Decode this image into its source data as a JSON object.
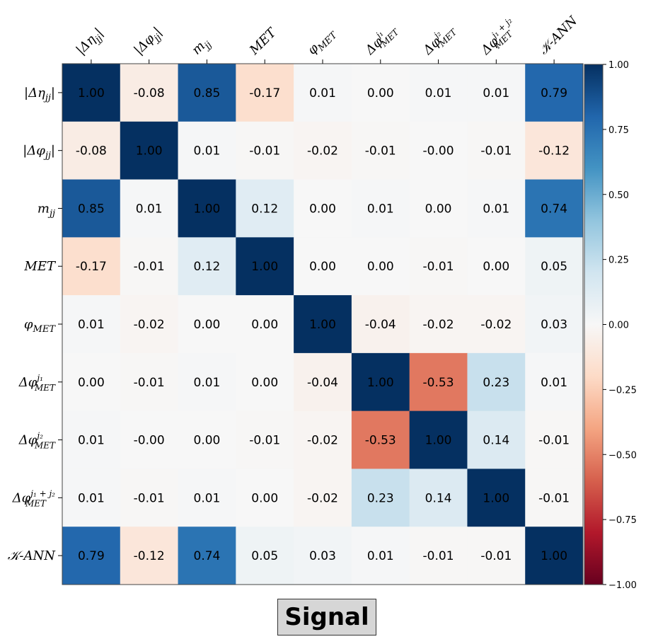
{
  "chart_data": {
    "type": "heatmap",
    "title": "Signal",
    "variables": [
      "|Δη_jj|",
      "|Δφ_jj|",
      "m_jj",
      "MET",
      "φ_MET",
      "Δφ_MET^j1",
      "Δφ_MET^j2",
      "Δφ_MET^(j1+j2)",
      "𝒦-ANN"
    ],
    "labels": [
      {
        "base": "|Δη",
        "sub": "jj",
        "sup": "",
        "tail": "|"
      },
      {
        "base": "|Δφ",
        "sub": "jj",
        "sup": "",
        "tail": "|"
      },
      {
        "base": "m",
        "sub": "jj",
        "sup": "",
        "tail": ""
      },
      {
        "base": "MET",
        "sub": "",
        "sup": "",
        "tail": ""
      },
      {
        "base": "φ",
        "sub": "MET",
        "sup": "",
        "tail": ""
      },
      {
        "base": "Δφ",
        "sub": "MET",
        "sup": "j₁",
        "tail": ""
      },
      {
        "base": "Δφ",
        "sub": "MET",
        "sup": "j₂",
        "tail": ""
      },
      {
        "base": "Δφ",
        "sub": "MET",
        "sup": "j₁ + j₂",
        "tail": ""
      },
      {
        "base": "𝒦-ANN",
        "sub": "",
        "sup": "",
        "tail": ""
      }
    ],
    "matrix": [
      [
        1.0,
        -0.08,
        0.85,
        -0.17,
        0.01,
        0.0,
        0.01,
        0.01,
        0.79
      ],
      [
        -0.08,
        1.0,
        0.01,
        -0.01,
        -0.02,
        -0.01,
        -0.0,
        -0.01,
        -0.12
      ],
      [
        0.85,
        0.01,
        1.0,
        0.12,
        0.0,
        0.01,
        0.0,
        0.01,
        0.74
      ],
      [
        -0.17,
        -0.01,
        0.12,
        1.0,
        0.0,
        0.0,
        -0.01,
        0.0,
        0.05
      ],
      [
        0.01,
        -0.02,
        0.0,
        0.0,
        1.0,
        -0.04,
        -0.02,
        -0.02,
        0.03
      ],
      [
        0.0,
        -0.01,
        0.01,
        0.0,
        -0.04,
        1.0,
        -0.53,
        0.23,
        0.01
      ],
      [
        0.01,
        -0.0,
        0.0,
        -0.01,
        -0.02,
        -0.53,
        1.0,
        0.14,
        -0.01
      ],
      [
        0.01,
        -0.01,
        0.01,
        0.0,
        -0.02,
        0.23,
        0.14,
        1.0,
        -0.01
      ],
      [
        0.79,
        -0.12,
        0.74,
        0.05,
        0.03,
        0.01,
        -0.01,
        -0.01,
        1.0
      ]
    ],
    "cell_labels": [
      [
        "1.00",
        "-0.08",
        "0.85",
        "-0.17",
        "0.01",
        "0.00",
        "0.01",
        "0.01",
        "0.79"
      ],
      [
        "-0.08",
        "1.00",
        "0.01",
        "-0.01",
        "-0.02",
        "-0.01",
        "-0.00",
        "-0.01",
        "-0.12"
      ],
      [
        "0.85",
        "0.01",
        "1.00",
        "0.12",
        "0.00",
        "0.01",
        "0.00",
        "0.01",
        "0.74"
      ],
      [
        "-0.17",
        "-0.01",
        "0.12",
        "1.00",
        "0.00",
        "0.00",
        "-0.01",
        "0.00",
        "0.05"
      ],
      [
        "0.01",
        "-0.02",
        "0.00",
        "0.00",
        "1.00",
        "-0.04",
        "-0.02",
        "-0.02",
        "0.03"
      ],
      [
        "0.00",
        "-0.01",
        "0.01",
        "0.00",
        "-0.04",
        "1.00",
        "-0.53",
        "0.23",
        "0.01"
      ],
      [
        "0.01",
        "-0.00",
        "0.00",
        "-0.01",
        "-0.02",
        "-0.53",
        "1.00",
        "0.14",
        "-0.01"
      ],
      [
        "0.01",
        "-0.01",
        "0.01",
        "0.00",
        "-0.02",
        "0.23",
        "0.14",
        "1.00",
        "-0.01"
      ],
      [
        "0.79",
        "-0.12",
        "0.74",
        "0.05",
        "0.03",
        "0.01",
        "-0.01",
        "-0.01",
        "1.00"
      ]
    ],
    "colorbar": {
      "range": [
        -1.0,
        1.0
      ],
      "ticks": [
        1.0,
        0.75,
        0.5,
        0.25,
        0.0,
        -0.25,
        -0.5,
        -0.75,
        -1.0
      ],
      "tick_labels": [
        "1.00",
        "0.75",
        "0.50",
        "0.25",
        "0.00",
        "−0.25",
        "−0.50",
        "−0.75",
        "−1.00"
      ],
      "colormap": "RdBu",
      "stops": [
        "#67001f",
        "#b2182b",
        "#d6604d",
        "#f4a582",
        "#fddbc7",
        "#f7f7f7",
        "#d1e5f0",
        "#92c5de",
        "#4393c3",
        "#2166ac",
        "#053061"
      ]
    },
    "x_tick_position": "top",
    "legend": "right"
  }
}
